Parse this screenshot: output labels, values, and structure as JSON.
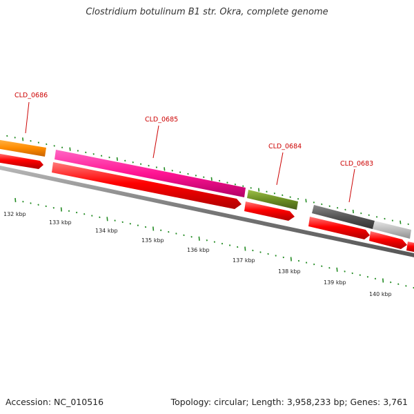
{
  "title": "Clostridium botulinum B1 str. Okra, complete genome",
  "footer": {
    "accession": "Accession: NC_010516",
    "summary": "Topology: circular; Length: 3,958,233 bp; Genes: 3,761"
  },
  "genes": [
    {
      "name": "CLD_0686",
      "color": "#ff8c00"
    },
    {
      "name": "CLD_0685",
      "color": "#ff1493"
    },
    {
      "name": "CLD_0684",
      "color": "#6b8e23"
    },
    {
      "name": "CLD_0683",
      "color": "#555555"
    }
  ],
  "ruler": [
    {
      "label": "132 kbp"
    },
    {
      "label": "133 kbp"
    },
    {
      "label": "134 kbp"
    },
    {
      "label": "135 kbp"
    },
    {
      "label": "136 kbp"
    },
    {
      "label": "137 kbp"
    },
    {
      "label": "138 kbp"
    },
    {
      "label": "139 kbp"
    },
    {
      "label": "140 kbp"
    }
  ],
  "colors": {
    "cds_arrow": "#ff0000",
    "backbone": "#777777",
    "tick": "#228b22",
    "light_gray_gene": "#bbbbbb"
  }
}
